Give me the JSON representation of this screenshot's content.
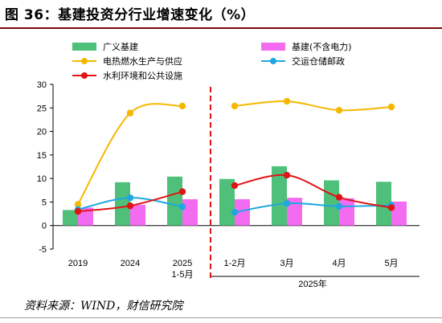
{
  "figure": {
    "title": "图 36：基建投资分行业增速变化（%）",
    "source": "资料来源：WIND，财信研究院"
  },
  "chart_data": {
    "type": "bar",
    "categories": [
      "2019",
      "2024",
      "2025\n1-5月",
      "1-2月",
      "3月",
      "4月",
      "5月"
    ],
    "group_label": "2025年",
    "ylim": [
      -5,
      30
    ],
    "yticks": [
      -5,
      0,
      5,
      10,
      15,
      20,
      25,
      30
    ],
    "grid": false,
    "legend_position": "top",
    "series": [
      {
        "name": "广义基建",
        "kind": "bar",
        "color": "#4ec07a",
        "values": [
          3.3,
          9.2,
          10.4,
          9.9,
          12.6,
          9.6,
          9.3
        ]
      },
      {
        "name": "基建(不含电力)",
        "kind": "bar",
        "color": "#f26bf0",
        "values": [
          3.8,
          4.4,
          5.6,
          5.6,
          5.9,
          5.8,
          5.1
        ]
      },
      {
        "name": "电热燃水生产与供应",
        "kind": "line",
        "color": "#f5b800",
        "values": [
          4.5,
          23.9,
          25.4,
          25.4,
          26.4,
          24.5,
          25.2
        ]
      },
      {
        "name": "交运仓储邮政",
        "kind": "line",
        "color": "#1fa8e0",
        "values": [
          3.4,
          5.9,
          4.0,
          2.8,
          4.7,
          4.1,
          4.3
        ]
      },
      {
        "name": "水利环境和公共设施",
        "kind": "line",
        "color": "#e01414",
        "values": [
          3.0,
          4.2,
          7.2,
          8.5,
          10.7,
          6.0,
          3.8
        ]
      }
    ]
  }
}
